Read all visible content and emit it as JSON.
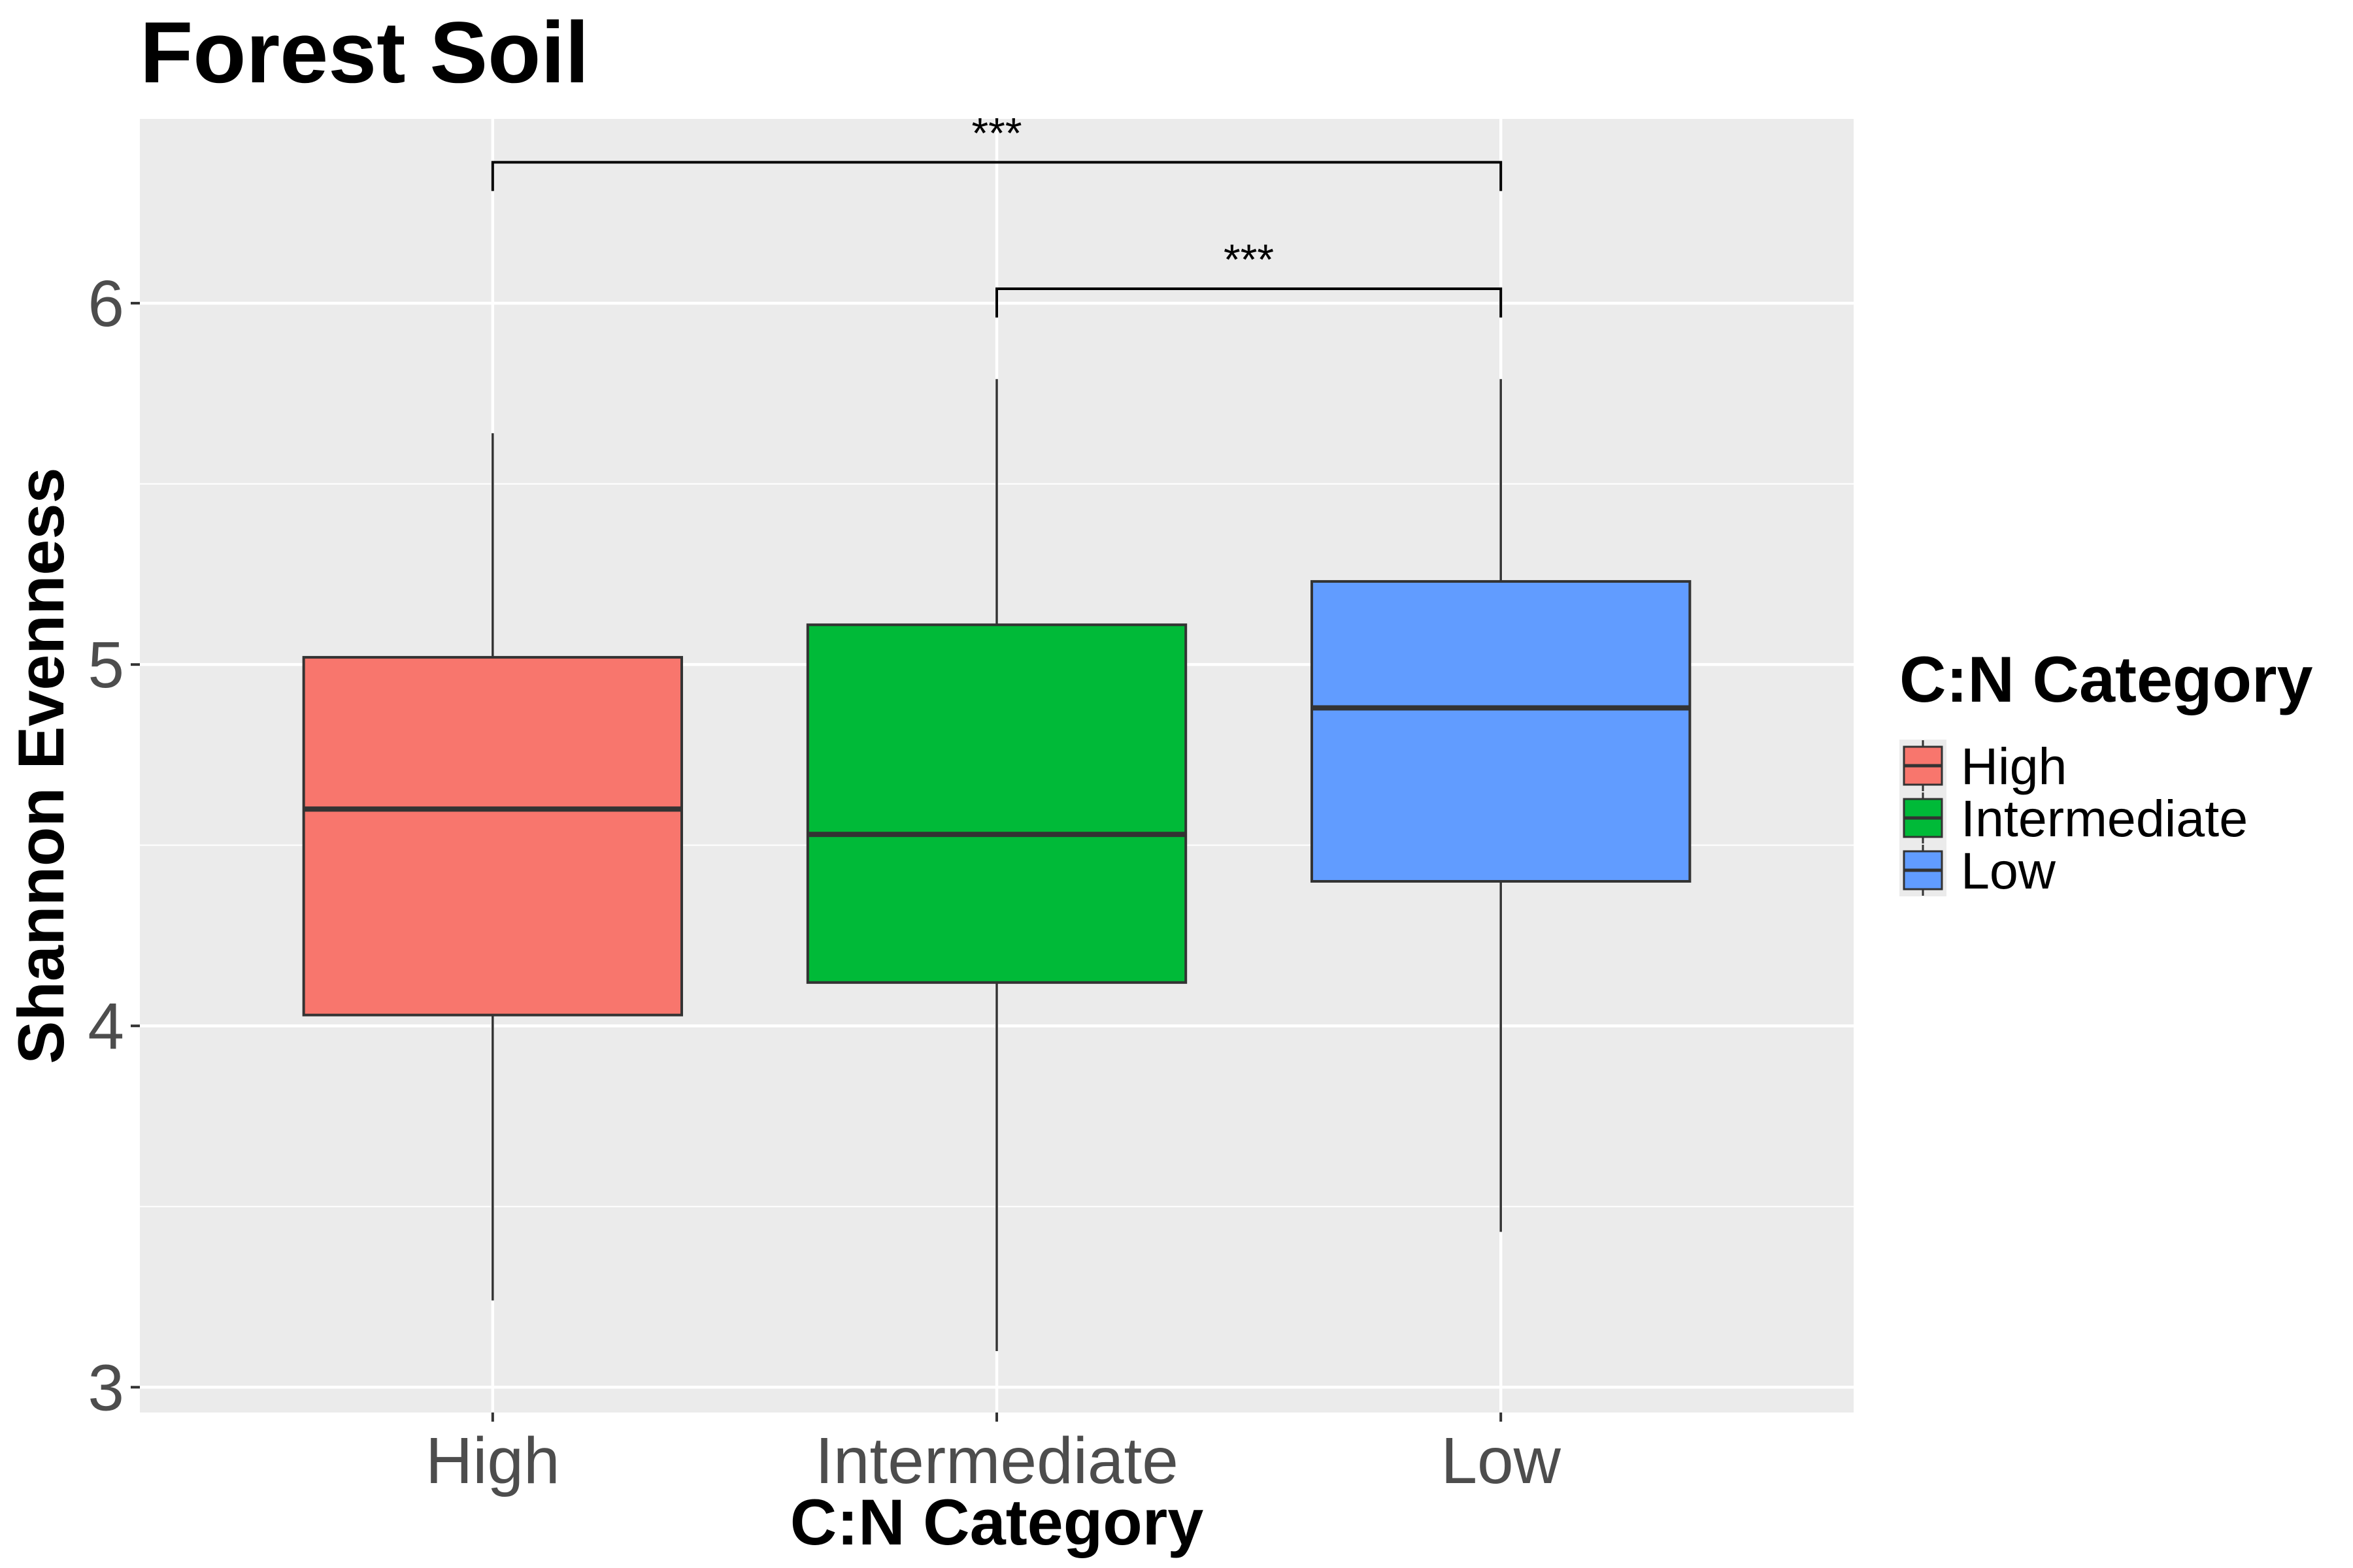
{
  "chart_data": {
    "type": "boxplot",
    "title": "Forest Soil",
    "xlabel": "C:N Category",
    "ylabel": "Shannon Evenness",
    "categories": [
      "High",
      "Intermediate",
      "Low"
    ],
    "ylim": [
      2.93,
      6.51
    ],
    "yticks": [
      3,
      4,
      5,
      6
    ],
    "ytick_labels": [
      "3",
      "4",
      "5",
      "6"
    ],
    "grid": true,
    "boxes": [
      {
        "category": "High",
        "min": 3.24,
        "q1": 4.03,
        "median": 4.6,
        "q3": 5.02,
        "max": 5.64,
        "color": "#F8766D"
      },
      {
        "category": "Intermediate",
        "min": 3.1,
        "q1": 4.12,
        "median": 4.53,
        "q3": 5.11,
        "max": 5.79,
        "color": "#00BA38"
      },
      {
        "category": "Low",
        "min": 3.43,
        "q1": 4.4,
        "median": 4.88,
        "q3": 5.23,
        "max": 5.79,
        "color": "#619CFF"
      }
    ],
    "significance": [
      {
        "from": "High",
        "to": "Low",
        "y": 6.39,
        "label": "***"
      },
      {
        "from": "Intermediate",
        "to": "Low",
        "y": 6.04,
        "label": "***"
      }
    ],
    "legend": {
      "title": "C:N Category",
      "position": "right",
      "items": [
        {
          "label": "High",
          "color": "#F8766D"
        },
        {
          "label": "Intermediate",
          "color": "#00BA38"
        },
        {
          "label": "Low",
          "color": "#619CFF"
        }
      ]
    }
  }
}
